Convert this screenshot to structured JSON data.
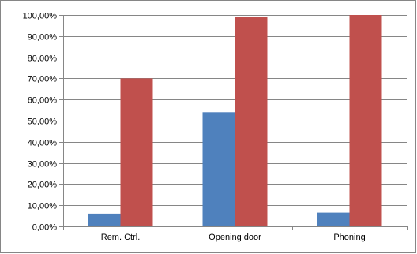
{
  "chart_data": {
    "type": "bar",
    "categories": [
      "Rem. Ctrl.",
      "Opening door",
      "Phoning"
    ],
    "series": [
      {
        "values": [
          6.0,
          54.0,
          6.5
        ],
        "color": "#4f81bd"
      },
      {
        "values": [
          70.0,
          99.0,
          100.0
        ],
        "color": "#c0504d"
      }
    ],
    "ylim": [
      0,
      100
    ],
    "yticks": [
      0,
      10,
      20,
      30,
      40,
      50,
      60,
      70,
      80,
      90,
      100
    ],
    "ytick_labels": [
      "0,00%",
      "10,00%",
      "20,00%",
      "30,00%",
      "40,00%",
      "50,00%",
      "60,00%",
      "70,00%",
      "80,00%",
      "90,00%",
      "100,00%"
    ],
    "grid": true,
    "gridline_color": "#868686",
    "legend": "none"
  }
}
